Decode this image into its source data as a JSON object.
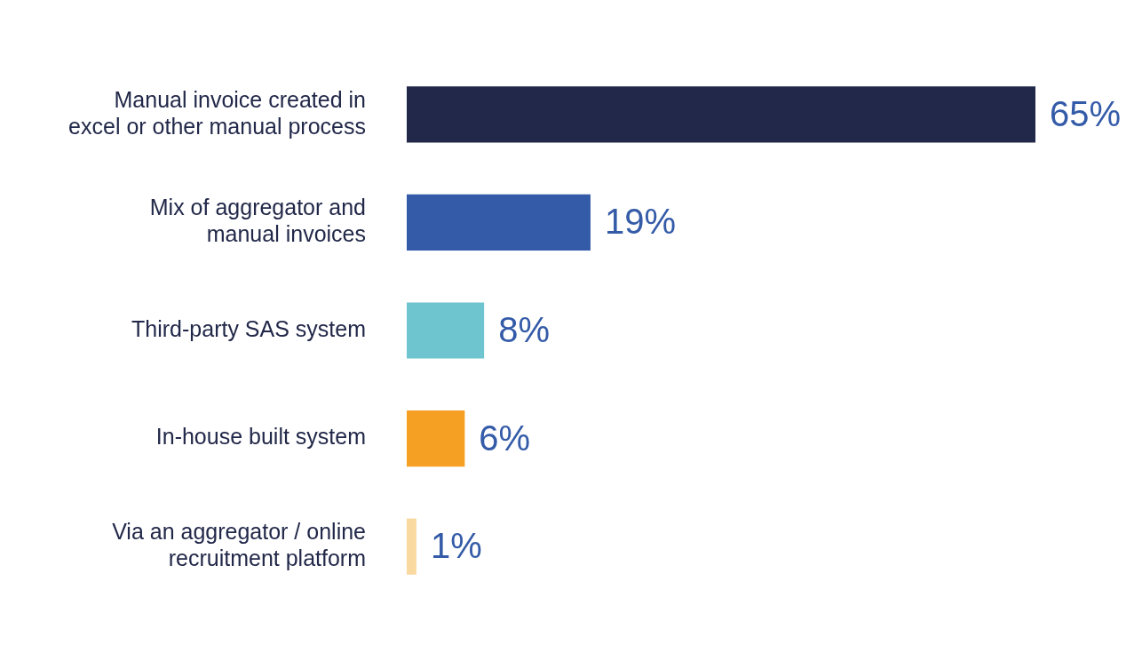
{
  "chart_data": {
    "type": "bar",
    "orientation": "horizontal",
    "categories": [
      "Manual invoice created in\nexcel or other manual process",
      "Mix of aggregator and\nmanual invoices",
      "Third-party SAS system",
      "In-house built system",
      "Via an aggregator / online\nrecruitment platform"
    ],
    "values": [
      65,
      19,
      8,
      6,
      1
    ],
    "colors": [
      "#222849",
      "#345ba8",
      "#6fc5cf",
      "#f5a023",
      "#fad9a0"
    ],
    "value_labels": [
      "65%",
      "19%",
      "8%",
      "6%",
      "1%"
    ]
  }
}
